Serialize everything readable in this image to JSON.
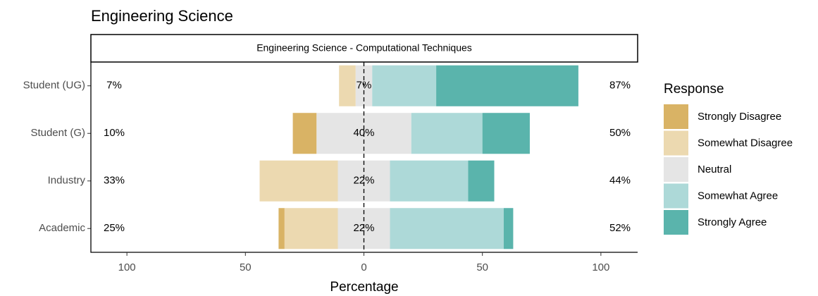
{
  "chart_data": {
    "type": "diverging_bar",
    "title": "Engineering Science",
    "facet_title": "Engineering Science - Computational Techniques",
    "x_label": "Percentage",
    "legend_title": "Response",
    "categories": [
      "Student (UG)",
      "Student (G)",
      "Industry",
      "Academic"
    ],
    "series": [
      {
        "name": "Strongly Disagree",
        "color": "#d9b365",
        "side": "left",
        "values": [
          0,
          10,
          0,
          2.5
        ]
      },
      {
        "name": "Somewhat Disagree",
        "color": "#ecd9b0",
        "side": "left",
        "values": [
          7,
          0,
          33,
          22.5
        ]
      },
      {
        "name": "Neutral",
        "color": "#e5e5e5",
        "side": "center",
        "values": [
          7,
          40,
          22,
          22
        ]
      },
      {
        "name": "Somewhat Agree",
        "color": "#add9d8",
        "side": "right",
        "values": [
          27,
          30,
          33,
          48
        ]
      },
      {
        "name": "Strongly Agree",
        "color": "#5ab4ac",
        "side": "right",
        "values": [
          60,
          20,
          11,
          4
        ]
      }
    ],
    "left_labels": [
      "7%",
      "10%",
      "33%",
      "25%"
    ],
    "center_labels": [
      "7%",
      "40%",
      "22%",
      "22%"
    ],
    "right_labels": [
      "87%",
      "50%",
      "44%",
      "52%"
    ],
    "xlim": [
      -115.2,
      115.5
    ],
    "xticks": [
      {
        "value": -100,
        "label": "100"
      },
      {
        "value": -50,
        "label": "50"
      },
      0,
      50,
      100
    ]
  }
}
